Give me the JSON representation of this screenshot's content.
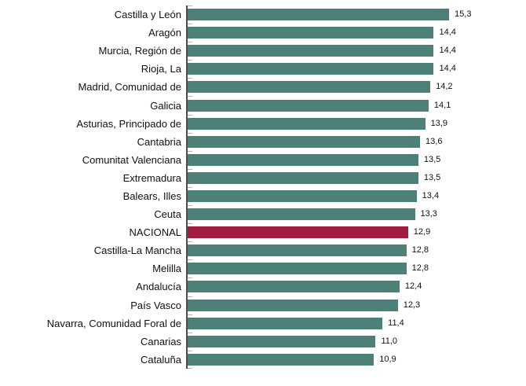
{
  "chart_data": {
    "type": "bar",
    "orientation": "horizontal",
    "title": "",
    "xlabel": "",
    "ylabel": "",
    "grid": false,
    "legend": "none",
    "xlim": [
      0,
      19.8
    ],
    "decimal_separator": ",",
    "categories": [
      "Castilla y León",
      "Aragón",
      "Murcia, Región de",
      "Rioja, La",
      "Madrid, Comunidad de",
      "Galicia",
      "Asturias, Principado de",
      "Cantabria",
      "Comunitat Valenciana",
      "Extremadura",
      "Balears, Illes",
      "Ceuta",
      "NACIONAL",
      "Castilla-La Mancha",
      "Melilla",
      "Andalucía",
      "País Vasco",
      "Navarra, Comunidad Foral de",
      "Canarias",
      "Cataluña"
    ],
    "values": [
      15.3,
      14.4,
      14.4,
      14.4,
      14.2,
      14.1,
      13.9,
      13.6,
      13.5,
      13.5,
      13.4,
      13.3,
      12.9,
      12.8,
      12.8,
      12.4,
      12.3,
      11.4,
      11.0,
      10.9
    ],
    "value_labels": [
      "15,3",
      "14,4",
      "14,4",
      "14,4",
      "14,2",
      "14,1",
      "13,9",
      "13,6",
      "13,5",
      "13,5",
      "13,4",
      "13,3",
      "12,9",
      "12,8",
      "12,8",
      "12,4",
      "12,3",
      "11,4",
      "11,0",
      "10,9"
    ],
    "highlight_category": "NACIONAL",
    "highlight_index": 12,
    "colors": {
      "bar": "#4d8076",
      "highlight": "#a21c40",
      "axis": "#4d4d4d",
      "tick": "#b3b3b3",
      "text": "#111111",
      "background": "#ffffff"
    }
  }
}
